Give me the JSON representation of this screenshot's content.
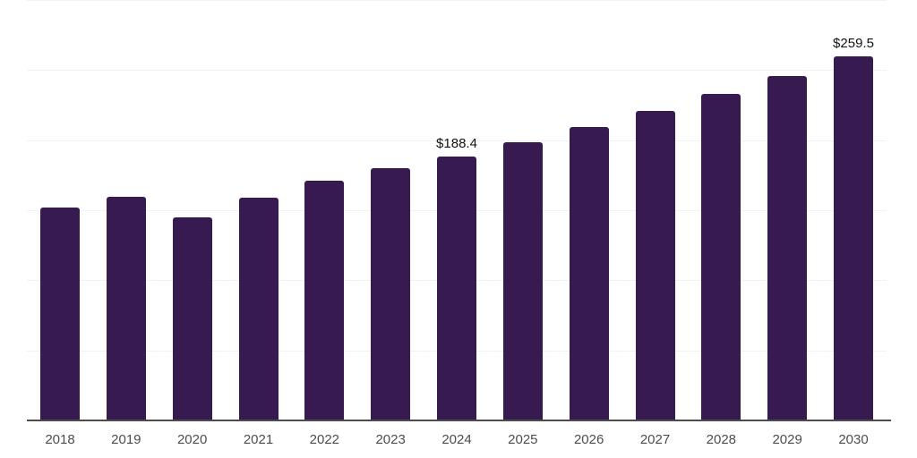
{
  "chart_data": {
    "type": "bar",
    "title": "",
    "xlabel": "",
    "ylabel": "",
    "categories": [
      "2018",
      "2019",
      "2020",
      "2021",
      "2022",
      "2023",
      "2024",
      "2025",
      "2026",
      "2027",
      "2028",
      "2029",
      "2030"
    ],
    "values": [
      151.7,
      159.5,
      144.6,
      158.7,
      171.3,
      179.9,
      188.4,
      198.7,
      209.6,
      221.1,
      233.2,
      246.0,
      259.5
    ],
    "bar_labels": [
      "",
      "",
      "",
      "",
      "",
      "",
      "$188.4",
      "",
      "",
      "",
      "",
      "",
      "$259.5"
    ],
    "ylim": [
      0,
      300
    ],
    "gridline_values": [
      300,
      250,
      200,
      150,
      100,
      50
    ],
    "grid": true,
    "legend_position": "none"
  },
  "colors": {
    "bar": "#371a50",
    "gridline": "#f2f2f2",
    "axis_line": "#4d4d4d",
    "tick_label": "#4d4d4d",
    "data_label": "#111111",
    "background": "#ffffff"
  }
}
